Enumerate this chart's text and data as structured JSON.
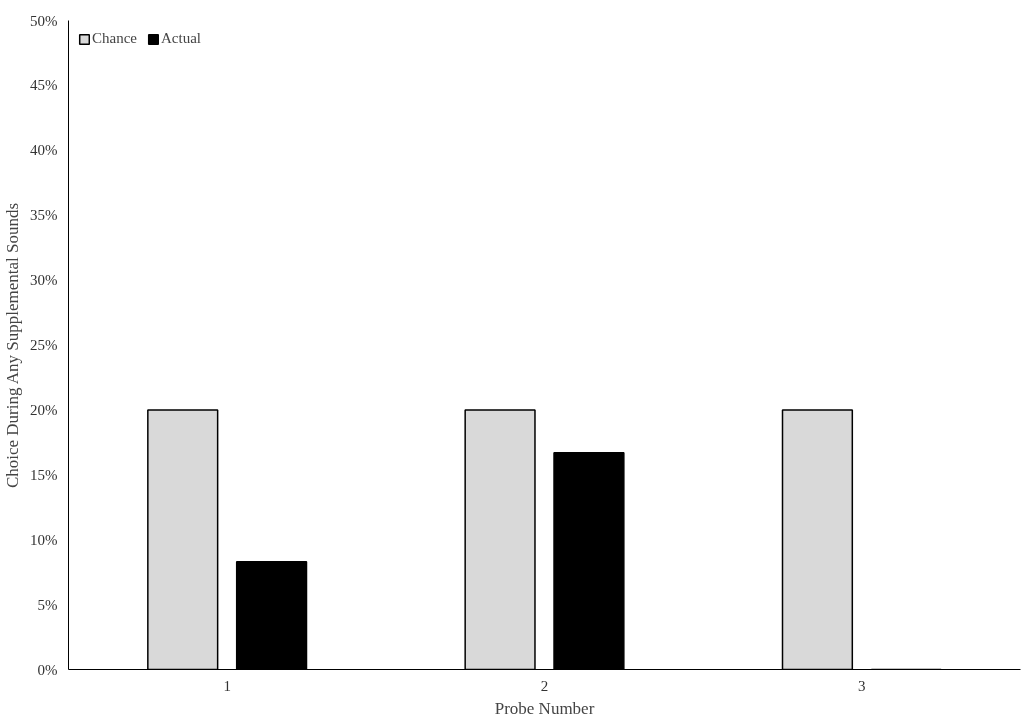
{
  "chart_data": {
    "type": "bar",
    "xlabel": "Probe Number",
    "ylabel": "Choice During Any Supplemental Sounds",
    "categories": [
      "1",
      "2",
      "3"
    ],
    "series": [
      {
        "name": "Chance",
        "color": "#d9d9d9",
        "values": [
          20,
          20,
          20
        ]
      },
      {
        "name": "Actual",
        "color": "#000000",
        "values": [
          8.3,
          16.7,
          0
        ]
      }
    ],
    "ylim": [
      0,
      50
    ],
    "yticks": [
      {
        "value": 0,
        "label": "0%"
      },
      {
        "value": 5,
        "label": "5%"
      },
      {
        "value": 10,
        "label": "10%"
      },
      {
        "value": 15,
        "label": "15%"
      },
      {
        "value": 20,
        "label": "20%"
      },
      {
        "value": 25,
        "label": "25%"
      },
      {
        "value": 30,
        "label": "30%"
      },
      {
        "value": 35,
        "label": "35%"
      },
      {
        "value": 40,
        "label": "40%"
      },
      {
        "value": 45,
        "label": "45%"
      },
      {
        "value": 50,
        "label": "50%"
      }
    ],
    "grid": false,
    "legend": "top left"
  }
}
